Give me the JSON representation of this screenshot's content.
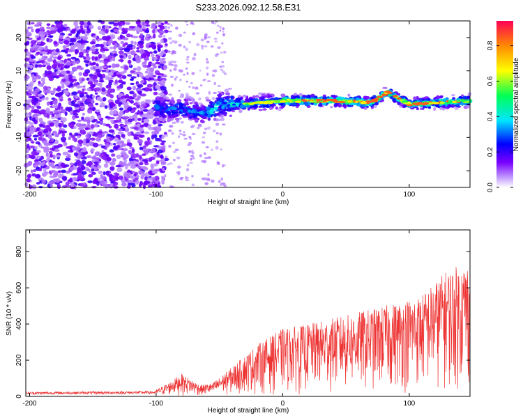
{
  "title": "S233.2026.092.12.58.E31",
  "chart_data": [
    {
      "type": "heatmap",
      "name": "spectrogram",
      "xlabel": "Height of straight line (km)",
      "ylabel": "Frequency (Hz)",
      "xlim": [
        -203,
        148
      ],
      "ylim": [
        -25,
        25
      ],
      "xticks": [
        -200,
        -100,
        0,
        100
      ],
      "yticks": [
        -20,
        -10,
        0,
        10,
        20
      ],
      "colorbar": {
        "label": "Normalized spectral amplitude",
        "range": [
          0.0,
          0.94
        ],
        "ticks": [
          0.0,
          0.2,
          0.4,
          0.6,
          0.8
        ]
      },
      "trend": [
        {
          "x": -100,
          "y": -1.0
        },
        {
          "x": -80,
          "y": -1.5
        },
        {
          "x": -60,
          "y": -3.0
        },
        {
          "x": -50,
          "y": 0.0
        },
        {
          "x": -30,
          "y": 0.0
        },
        {
          "x": 0,
          "y": 1.0
        },
        {
          "x": 40,
          "y": 1.0
        },
        {
          "x": 70,
          "y": 0.5
        },
        {
          "x": 83,
          "y": 3.5
        },
        {
          "x": 100,
          "y": 0.0
        },
        {
          "x": 148,
          "y": 1.0
        }
      ]
    },
    {
      "type": "line",
      "name": "snr",
      "xlabel": "Height of straight line (km)",
      "ylabel": "SNR (10 * v/v)",
      "xlim": [
        -203,
        148
      ],
      "ylim": [
        0,
        920
      ],
      "xticks": [
        -200,
        -100,
        0,
        100
      ],
      "yticks": [
        0,
        200,
        400,
        600,
        800
      ],
      "color": "#ee3333",
      "envelope": [
        {
          "x": -203,
          "y": 25
        },
        {
          "x": -100,
          "y": 30
        },
        {
          "x": -90,
          "y": 60
        },
        {
          "x": -80,
          "y": 100
        },
        {
          "x": -65,
          "y": 50
        },
        {
          "x": -55,
          "y": 60
        },
        {
          "x": -40,
          "y": 130
        },
        {
          "x": -20,
          "y": 230
        },
        {
          "x": 0,
          "y": 300
        },
        {
          "x": 20,
          "y": 320
        },
        {
          "x": 50,
          "y": 360
        },
        {
          "x": 80,
          "y": 400
        },
        {
          "x": 110,
          "y": 450
        },
        {
          "x": 130,
          "y": 560
        },
        {
          "x": 148,
          "y": 600
        }
      ]
    }
  ]
}
